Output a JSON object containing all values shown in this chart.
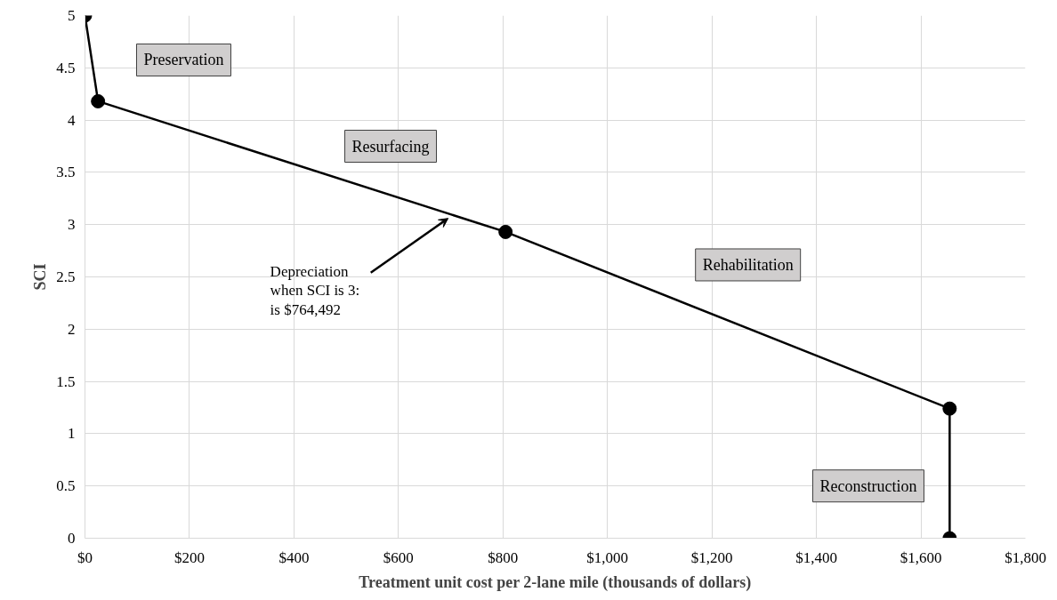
{
  "chart_data": {
    "type": "line",
    "xlabel": "Treatment unit cost per 2-lane mile (thousands of dollars)",
    "ylabel": "SCI",
    "x": [
      0,
      25,
      805,
      1655,
      1655
    ],
    "series": [
      {
        "color": "#000000",
        "values": [
          5,
          4.18,
          2.93,
          1.24,
          0
        ]
      }
    ],
    "xlim": [
      0,
      1800
    ],
    "ylim": [
      0,
      5
    ],
    "xticks": [
      {
        "value": 0,
        "label": "$0"
      },
      {
        "value": 200,
        "label": "$200"
      },
      {
        "value": 400,
        "label": "$400"
      },
      {
        "value": 600,
        "label": "$600"
      },
      {
        "value": 800,
        "label": "$800"
      },
      {
        "value": 1000,
        "label": "$1,000"
      },
      {
        "value": 1200,
        "label": "$1,200"
      },
      {
        "value": 1400,
        "label": "$1,400"
      },
      {
        "value": 1600,
        "label": "$1,600"
      },
      {
        "value": 1800,
        "label": "$1,800"
      }
    ],
    "yticks": [
      0,
      0.5,
      1,
      1.5,
      2,
      2.5,
      3,
      3.5,
      4,
      4.5,
      5
    ],
    "grid": true,
    "marker": "circle",
    "line_style": "solid",
    "annotations": [
      "Preservation",
      "Resurfacing",
      "Rehabilitation",
      "Reconstruction",
      {
        "text": "Depreciation\nwhen SCI is 3:\nis $764,492",
        "x": 695,
        "y": 3.06
      }
    ]
  }
}
